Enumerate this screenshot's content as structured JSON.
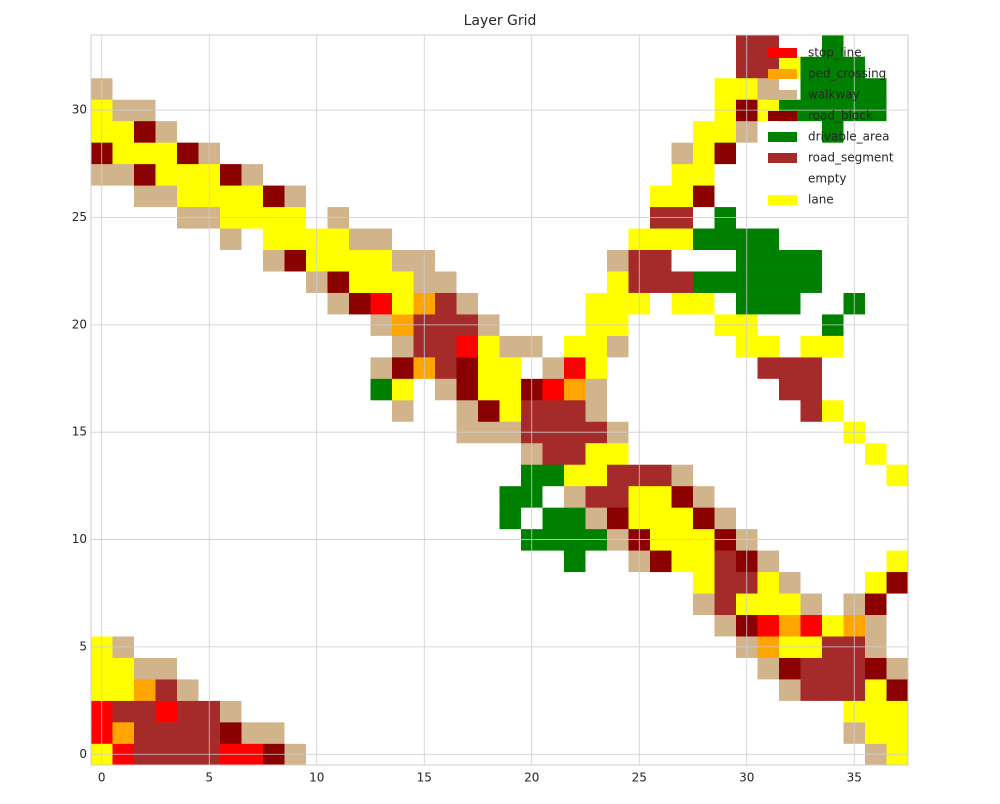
{
  "chart_data": {
    "type": "heatmap",
    "title": "Layer Grid",
    "layers": [
      {
        "name": "stop_line",
        "color": "#ff0000"
      },
      {
        "name": "ped_crossing",
        "color": "#ffa500"
      },
      {
        "name": "walkway",
        "color": "#d2b48c"
      },
      {
        "name": "road_block",
        "color": "#8b0000"
      },
      {
        "name": "drivable_area",
        "color": "#008000"
      },
      {
        "name": "road_segment",
        "color": "#a52a2a"
      },
      {
        "name": "empty",
        "color": "#ffffff"
      },
      {
        "name": "lane",
        "color": "#ffff00"
      }
    ],
    "values": [
      [
        7,
        0,
        5,
        5,
        5,
        5,
        0,
        0,
        3,
        2,
        6,
        6,
        6,
        6,
        6,
        6,
        6,
        6,
        6,
        6,
        6,
        6,
        6,
        6,
        6,
        6,
        6,
        6,
        6,
        6,
        6,
        6,
        6,
        6,
        6,
        6,
        2,
        7
      ],
      [
        0,
        1,
        5,
        5,
        5,
        5,
        3,
        2,
        2,
        6,
        6,
        6,
        6,
        6,
        6,
        6,
        6,
        6,
        6,
        6,
        6,
        6,
        6,
        6,
        6,
        6,
        6,
        6,
        6,
        6,
        6,
        6,
        6,
        6,
        6,
        2,
        7,
        7
      ],
      [
        0,
        5,
        5,
        0,
        5,
        5,
        2,
        6,
        6,
        6,
        6,
        6,
        6,
        6,
        6,
        6,
        6,
        6,
        6,
        6,
        6,
        6,
        6,
        6,
        6,
        6,
        6,
        6,
        6,
        6,
        6,
        6,
        6,
        6,
        6,
        7,
        7,
        7
      ],
      [
        7,
        7,
        1,
        5,
        2,
        6,
        6,
        6,
        6,
        6,
        6,
        6,
        6,
        6,
        6,
        6,
        6,
        6,
        6,
        6,
        6,
        6,
        6,
        6,
        6,
        6,
        6,
        6,
        6,
        6,
        6,
        6,
        2,
        5,
        5,
        5,
        7,
        3
      ],
      [
        7,
        7,
        2,
        2,
        6,
        6,
        6,
        6,
        6,
        6,
        6,
        6,
        6,
        6,
        6,
        6,
        6,
        6,
        6,
        6,
        6,
        6,
        6,
        6,
        6,
        6,
        6,
        6,
        6,
        6,
        6,
        2,
        3,
        5,
        5,
        5,
        3,
        2
      ],
      [
        7,
        2,
        6,
        6,
        6,
        6,
        6,
        6,
        6,
        6,
        6,
        6,
        6,
        6,
        6,
        6,
        6,
        6,
        6,
        6,
        6,
        6,
        6,
        6,
        6,
        6,
        6,
        6,
        6,
        6,
        2,
        1,
        7,
        7,
        5,
        5,
        2,
        6
      ],
      [
        6,
        6,
        6,
        6,
        6,
        6,
        6,
        6,
        6,
        6,
        6,
        6,
        6,
        6,
        6,
        6,
        6,
        6,
        6,
        6,
        6,
        6,
        6,
        6,
        6,
        6,
        6,
        6,
        6,
        2,
        3,
        0,
        1,
        0,
        7,
        1,
        2,
        6
      ],
      [
        6,
        6,
        6,
        6,
        6,
        6,
        6,
        6,
        6,
        6,
        6,
        6,
        6,
        6,
        6,
        6,
        6,
        6,
        6,
        6,
        6,
        6,
        6,
        6,
        6,
        6,
        6,
        6,
        2,
        5,
        7,
        7,
        7,
        2,
        6,
        2,
        3,
        6
      ],
      [
        6,
        6,
        6,
        6,
        6,
        6,
        6,
        6,
        6,
        6,
        6,
        6,
        6,
        6,
        6,
        6,
        6,
        6,
        6,
        6,
        6,
        6,
        6,
        6,
        6,
        6,
        6,
        6,
        7,
        5,
        5,
        7,
        2,
        6,
        6,
        6,
        7,
        3
      ],
      [
        6,
        6,
        6,
        6,
        6,
        6,
        6,
        6,
        6,
        6,
        6,
        6,
        6,
        6,
        6,
        6,
        6,
        6,
        6,
        6,
        6,
        6,
        4,
        6,
        6,
        2,
        3,
        7,
        7,
        5,
        3,
        2,
        6,
        6,
        6,
        6,
        6,
        7
      ],
      [
        6,
        6,
        6,
        6,
        6,
        6,
        6,
        6,
        6,
        6,
        6,
        6,
        6,
        6,
        6,
        6,
        6,
        6,
        6,
        6,
        4,
        4,
        4,
        4,
        2,
        3,
        7,
        7,
        7,
        3,
        2,
        6,
        6,
        6,
        6,
        6,
        6,
        6
      ],
      [
        6,
        6,
        6,
        6,
        6,
        6,
        6,
        6,
        6,
        6,
        6,
        6,
        6,
        6,
        6,
        6,
        6,
        6,
        6,
        4,
        6,
        4,
        4,
        2,
        3,
        7,
        7,
        7,
        3,
        2,
        6,
        6,
        6,
        6,
        6,
        6,
        6,
        6
      ],
      [
        6,
        6,
        6,
        6,
        6,
        6,
        6,
        6,
        6,
        6,
        6,
        6,
        6,
        6,
        6,
        6,
        6,
        6,
        6,
        4,
        4,
        6,
        2,
        5,
        5,
        7,
        7,
        3,
        2,
        6,
        6,
        6,
        6,
        6,
        6,
        6,
        6,
        6
      ],
      [
        6,
        6,
        6,
        6,
        6,
        6,
        6,
        6,
        6,
        6,
        6,
        6,
        6,
        6,
        6,
        6,
        6,
        6,
        6,
        6,
        4,
        4,
        7,
        7,
        5,
        5,
        5,
        2,
        6,
        6,
        6,
        6,
        6,
        6,
        6,
        6,
        6,
        7
      ],
      [
        6,
        6,
        6,
        6,
        6,
        6,
        6,
        6,
        6,
        6,
        6,
        6,
        6,
        6,
        6,
        6,
        6,
        6,
        6,
        6,
        2,
        5,
        5,
        7,
        7,
        6,
        6,
        6,
        6,
        6,
        6,
        6,
        6,
        6,
        6,
        6,
        7,
        6
      ],
      [
        6,
        6,
        6,
        6,
        6,
        6,
        6,
        6,
        6,
        6,
        6,
        6,
        6,
        6,
        6,
        6,
        6,
        2,
        2,
        2,
        5,
        5,
        5,
        5,
        2,
        6,
        6,
        6,
        6,
        6,
        6,
        6,
        6,
        6,
        6,
        7,
        6,
        6
      ],
      [
        6,
        6,
        6,
        6,
        6,
        6,
        6,
        6,
        6,
        6,
        6,
        6,
        6,
        6,
        2,
        6,
        6,
        2,
        3,
        7,
        5,
        5,
        5,
        2,
        6,
        6,
        6,
        6,
        6,
        6,
        6,
        6,
        6,
        5,
        7,
        6,
        6,
        6
      ],
      [
        6,
        6,
        6,
        6,
        6,
        6,
        6,
        6,
        6,
        6,
        6,
        6,
        6,
        4,
        7,
        6,
        2,
        3,
        7,
        7,
        3,
        0,
        1,
        2,
        6,
        6,
        6,
        6,
        6,
        6,
        6,
        6,
        5,
        5,
        6,
        6,
        6,
        6
      ],
      [
        6,
        6,
        6,
        6,
        6,
        6,
        6,
        6,
        6,
        6,
        6,
        6,
        6,
        2,
        3,
        1,
        5,
        3,
        7,
        7,
        6,
        2,
        0,
        7,
        6,
        6,
        6,
        6,
        6,
        6,
        6,
        5,
        5,
        5,
        6,
        6,
        6,
        6
      ],
      [
        6,
        6,
        6,
        6,
        6,
        6,
        6,
        6,
        6,
        6,
        6,
        6,
        6,
        6,
        2,
        5,
        5,
        0,
        7,
        2,
        2,
        6,
        7,
        7,
        2,
        6,
        6,
        6,
        6,
        6,
        7,
        7,
        6,
        7,
        7,
        6,
        6,
        6
      ],
      [
        6,
        6,
        6,
        6,
        6,
        6,
        6,
        6,
        6,
        6,
        6,
        6,
        6,
        2,
        1,
        5,
        5,
        5,
        2,
        6,
        6,
        6,
        6,
        7,
        7,
        6,
        6,
        6,
        6,
        7,
        7,
        6,
        6,
        6,
        4,
        6,
        6,
        6
      ],
      [
        6,
        6,
        6,
        6,
        6,
        6,
        6,
        6,
        6,
        6,
        6,
        2,
        3,
        0,
        7,
        1,
        5,
        2,
        6,
        6,
        6,
        6,
        6,
        7,
        7,
        7,
        6,
        7,
        7,
        6,
        4,
        4,
        4,
        6,
        6,
        4,
        6,
        6
      ],
      [
        6,
        6,
        6,
        6,
        6,
        6,
        6,
        6,
        6,
        6,
        2,
        3,
        7,
        7,
        7,
        2,
        2,
        6,
        6,
        6,
        6,
        6,
        6,
        6,
        7,
        5,
        5,
        5,
        4,
        4,
        4,
        4,
        4,
        4,
        6,
        6,
        6,
        6
      ],
      [
        6,
        6,
        6,
        6,
        6,
        6,
        6,
        6,
        2,
        3,
        7,
        7,
        7,
        7,
        2,
        2,
        6,
        6,
        6,
        6,
        6,
        6,
        6,
        6,
        2,
        5,
        5,
        6,
        6,
        6,
        4,
        4,
        4,
        4,
        6,
        6,
        6,
        6
      ],
      [
        6,
        6,
        6,
        6,
        6,
        6,
        2,
        6,
        7,
        7,
        7,
        7,
        2,
        2,
        6,
        6,
        6,
        6,
        6,
        6,
        6,
        6,
        6,
        6,
        6,
        7,
        7,
        7,
        4,
        4,
        4,
        4,
        6,
        6,
        6,
        6,
        6,
        6
      ],
      [
        6,
        6,
        6,
        6,
        2,
        2,
        7,
        7,
        7,
        7,
        6,
        2,
        6,
        6,
        6,
        6,
        6,
        6,
        6,
        6,
        6,
        6,
        6,
        6,
        6,
        6,
        5,
        5,
        6,
        4,
        6,
        6,
        6,
        6,
        6,
        6,
        6,
        6
      ],
      [
        6,
        6,
        2,
        2,
        7,
        7,
        7,
        7,
        3,
        2,
        6,
        6,
        6,
        6,
        6,
        6,
        6,
        6,
        6,
        6,
        6,
        6,
        6,
        6,
        6,
        6,
        7,
        7,
        3,
        6,
        6,
        6,
        6,
        6,
        6,
        6,
        6,
        6
      ],
      [
        2,
        2,
        3,
        7,
        7,
        7,
        3,
        2,
        6,
        6,
        6,
        6,
        6,
        6,
        6,
        6,
        6,
        6,
        6,
        6,
        6,
        6,
        6,
        6,
        6,
        6,
        6,
        7,
        7,
        6,
        6,
        6,
        6,
        6,
        6,
        6,
        6,
        6
      ],
      [
        3,
        7,
        7,
        7,
        3,
        2,
        6,
        6,
        6,
        6,
        6,
        6,
        6,
        6,
        6,
        6,
        6,
        6,
        6,
        6,
        6,
        6,
        6,
        6,
        6,
        6,
        6,
        2,
        7,
        3,
        6,
        6,
        6,
        6,
        6,
        6,
        6,
        6
      ],
      [
        7,
        7,
        3,
        2,
        6,
        6,
        6,
        6,
        6,
        6,
        6,
        6,
        6,
        6,
        6,
        6,
        6,
        6,
        6,
        6,
        6,
        6,
        6,
        6,
        6,
        6,
        6,
        6,
        7,
        7,
        2,
        6,
        6,
        6,
        4,
        6,
        6,
        6
      ],
      [
        7,
        2,
        2,
        6,
        6,
        6,
        6,
        6,
        6,
        6,
        6,
        6,
        6,
        6,
        6,
        6,
        6,
        6,
        6,
        6,
        6,
        6,
        6,
        6,
        6,
        6,
        6,
        6,
        6,
        7,
        3,
        7,
        4,
        4,
        4,
        4,
        4,
        6
      ],
      [
        2,
        6,
        6,
        6,
        6,
        6,
        6,
        6,
        6,
        6,
        6,
        6,
        6,
        6,
        6,
        6,
        6,
        6,
        6,
        6,
        6,
        6,
        6,
        6,
        6,
        6,
        6,
        6,
        6,
        7,
        7,
        2,
        6,
        4,
        4,
        4,
        4,
        6
      ],
      [
        6,
        6,
        6,
        6,
        6,
        6,
        6,
        6,
        6,
        6,
        6,
        6,
        6,
        6,
        6,
        6,
        6,
        6,
        6,
        6,
        6,
        6,
        6,
        6,
        6,
        6,
        6,
        6,
        6,
        6,
        5,
        5,
        7,
        4,
        4,
        4,
        6,
        6
      ],
      [
        6,
        6,
        6,
        6,
        6,
        6,
        6,
        6,
        6,
        6,
        6,
        6,
        6,
        6,
        6,
        6,
        6,
        6,
        6,
        6,
        6,
        6,
        6,
        6,
        6,
        6,
        6,
        6,
        6,
        6,
        5,
        5,
        6,
        6,
        4,
        6,
        6,
        6
      ]
    ],
    "xlim": [
      -0.5,
      37.5
    ],
    "ylim": [
      -0.5,
      33.5
    ],
    "xticks": [
      0,
      5,
      10,
      15,
      20,
      25,
      30,
      35
    ],
    "yticks": [
      0,
      5,
      10,
      15,
      20,
      25,
      30
    ],
    "grid": true,
    "legend": "upper right"
  }
}
